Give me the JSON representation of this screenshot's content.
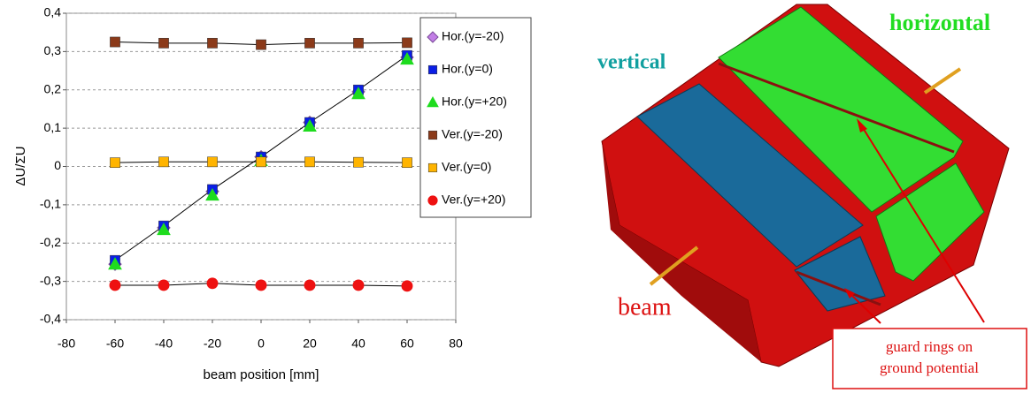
{
  "chart_data": {
    "type": "scatter",
    "xlabel": "beam position [mm]",
    "ylabel": "ΔU/ΣU",
    "x": [
      -60,
      -40,
      -20,
      0,
      20,
      40,
      60
    ],
    "xlim": [
      -80,
      80
    ],
    "xticks": [
      -80,
      -60,
      -40,
      -20,
      0,
      20,
      40,
      60,
      80
    ],
    "ylim": [
      -0.4,
      0.4
    ],
    "yticks": [
      {
        "value": -0.4,
        "label": "-0,4"
      },
      {
        "value": -0.3,
        "label": "-0,3"
      },
      {
        "value": -0.2,
        "label": "-0,2"
      },
      {
        "value": -0.1,
        "label": "-0,1"
      },
      0,
      {
        "value": 0.1,
        "label": "0,1"
      },
      {
        "value": 0.2,
        "label": "0,2"
      },
      {
        "value": 0.3,
        "label": "0,3"
      },
      {
        "value": 0.4,
        "label": "0,4"
      }
    ],
    "grid": true,
    "series": [
      {
        "name": "Hor.(y=-20)",
        "color": "#c27ee6",
        "marker": "diamond",
        "fit_line": false,
        "values": [
          -0.255,
          -0.16,
          -0.065,
          0.025,
          0.115,
          0.195,
          0.285
        ]
      },
      {
        "name": "Hor.(y=0)",
        "color": "#0a1ee6",
        "marker": "square",
        "fit_line": true,
        "values": [
          -0.245,
          -0.155,
          -0.06,
          0.025,
          0.115,
          0.2,
          0.29
        ]
      },
      {
        "name": "Hor.(y=+20)",
        "color": "#1edc1e",
        "marker": "triangle",
        "fit_line": false,
        "values": [
          -0.255,
          -0.165,
          -0.075,
          0.015,
          0.105,
          0.19,
          0.28
        ]
      },
      {
        "name": "Ver.(y=-20)",
        "color": "#8b3a1a",
        "marker": "square",
        "fit_line": true,
        "values": [
          0.325,
          0.322,
          0.322,
          0.318,
          0.322,
          0.322,
          0.323
        ]
      },
      {
        "name": "Ver.(y=0)",
        "color": "#ffb400",
        "marker": "square",
        "fit_line": true,
        "values": [
          0.01,
          0.012,
          0.012,
          0.012,
          0.012,
          0.011,
          0.01
        ]
      },
      {
        "name": "Ver.(y=+20)",
        "color": "#ee1111",
        "marker": "circle",
        "fit_line": true,
        "values": [
          -0.31,
          -0.31,
          -0.305,
          -0.31,
          -0.31,
          -0.31,
          -0.312
        ]
      }
    ]
  },
  "diagram": {
    "labels": {
      "horizontal": "horizontal",
      "vertical": "vertical",
      "beam": "beam"
    },
    "note": [
      "guard rings on",
      "ground potential"
    ]
  }
}
